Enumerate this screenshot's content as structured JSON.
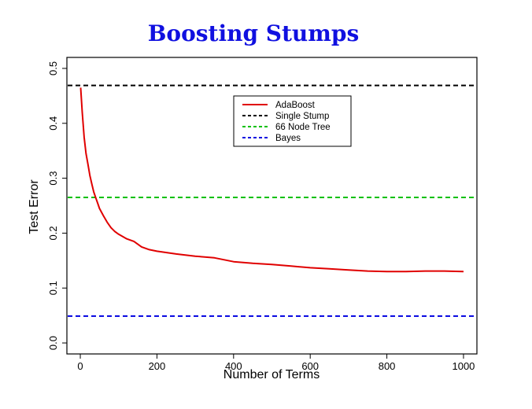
{
  "chart_data": {
    "type": "line",
    "title": "Boosting Stumps",
    "xlabel": "Number of Terms",
    "ylabel": "Test Error",
    "xlim": [
      -35,
      1035
    ],
    "ylim": [
      -0.02,
      0.52
    ],
    "xticks": [
      "0",
      "200",
      "400",
      "600",
      "800",
      "1000"
    ],
    "yticks": [
      "0.0",
      "0.1",
      "0.2",
      "0.3",
      "0.4",
      "0.5"
    ],
    "grid": false,
    "legend_position": "top-center",
    "series": [
      {
        "name": "AdaBoost",
        "style": "solid",
        "color": "#e00000",
        "x": [
          1,
          5,
          10,
          15,
          20,
          25,
          30,
          35,
          40,
          45,
          50,
          60,
          70,
          80,
          90,
          100,
          120,
          140,
          160,
          180,
          200,
          250,
          300,
          350,
          400,
          450,
          500,
          550,
          600,
          650,
          700,
          750,
          800,
          850,
          900,
          950,
          1000
        ],
        "y": [
          0.465,
          0.42,
          0.375,
          0.345,
          0.325,
          0.305,
          0.29,
          0.275,
          0.265,
          0.255,
          0.245,
          0.232,
          0.22,
          0.21,
          0.203,
          0.198,
          0.19,
          0.185,
          0.175,
          0.17,
          0.167,
          0.162,
          0.158,
          0.155,
          0.148,
          0.145,
          0.143,
          0.14,
          0.137,
          0.135,
          0.133,
          0.131,
          0.13,
          0.13,
          0.131,
          0.131,
          0.13
        ]
      },
      {
        "name": "Single Stump",
        "style": "dashed",
        "color": "#000000",
        "y_constant": 0.469
      },
      {
        "name": "66 Node Tree",
        "style": "dashed",
        "color": "#00c000",
        "y_constant": 0.265
      },
      {
        "name": "Bayes",
        "style": "dashed",
        "color": "#0000e0",
        "y_constant": 0.049
      }
    ]
  },
  "colors": {
    "title": "#1010e0",
    "axes": "#000000"
  }
}
